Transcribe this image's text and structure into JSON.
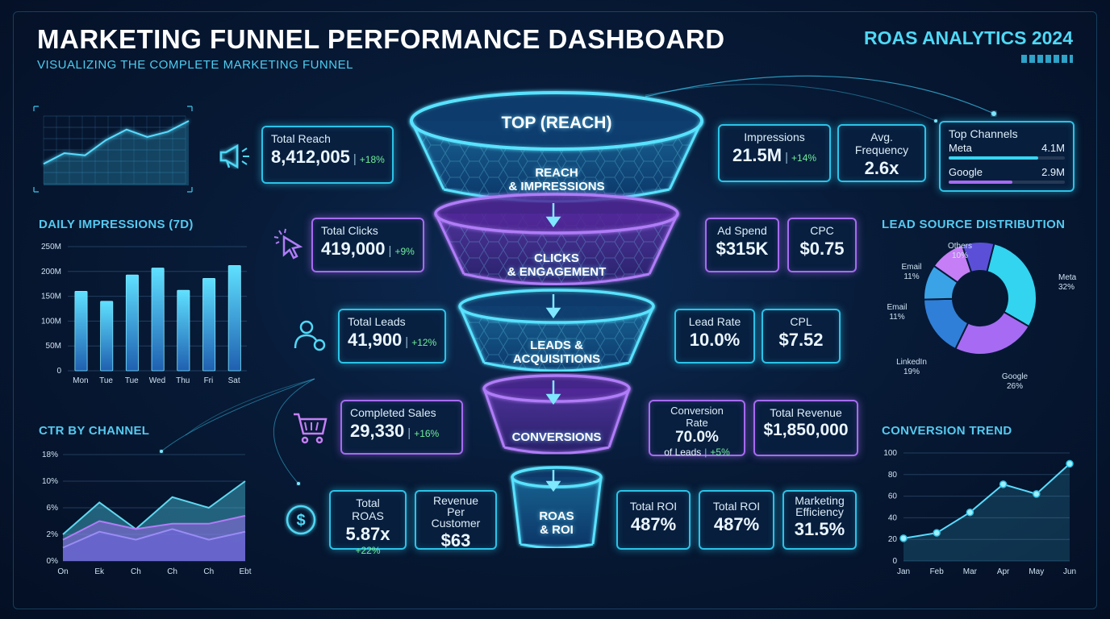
{
  "header": {
    "title": "MARKETING FUNNEL PERFORMANCE DASHBOARD",
    "subtitle": "VISUALIZING THE COMPLETE MARKETING FUNNEL",
    "brand": "ROAS ANALYTICS 2024"
  },
  "funnel": {
    "top_label": "TOP (REACH)",
    "stages": [
      {
        "label_1": "REACH",
        "label_2": "& IMPRESSIONS"
      },
      {
        "label_1": "CLICKS",
        "label_2": "& ENGAGEMENT"
      },
      {
        "label_1": "LEADS &",
        "label_2": "ACQUISITIONS"
      },
      {
        "label_1": "CONVERSIONS",
        "label_2": ""
      },
      {
        "label_1": "ROAS",
        "label_2": "& ROI"
      }
    ]
  },
  "metrics": {
    "total_reach": {
      "label": "Total Reach",
      "value": "8,412,005",
      "delta": "+18%"
    },
    "impressions": {
      "label": "Impressions",
      "value": "21.5M",
      "delta": "+14%"
    },
    "avg_frequency": {
      "label": "Avg. Frequency",
      "value": "2.6x"
    },
    "total_clicks": {
      "label": "Total Clicks",
      "value": "419,000",
      "delta": "+9%"
    },
    "ad_spend": {
      "label": "Ad Spend",
      "value": "$315K"
    },
    "cpc": {
      "label": "CPC",
      "value": "$0.75"
    },
    "total_leads": {
      "label": "Total Leads",
      "value": "41,900",
      "delta": "+12%"
    },
    "lead_rate": {
      "label": "Lead Rate",
      "value": "10.0%"
    },
    "cpl": {
      "label": "CPL",
      "value": "$7.52"
    },
    "completed_sales": {
      "label": "Completed Sales",
      "value": "29,330",
      "delta": "+16%"
    },
    "conversion_rate": {
      "label": "Conversion Rate",
      "value": "70.0%",
      "sub": "of Leads",
      "delta": "+5%"
    },
    "total_revenue": {
      "label": "Total Revenue",
      "value": "$1,850,000"
    },
    "total_roas": {
      "label": "Total ROAS",
      "value": "5.87x",
      "delta": "+22%"
    },
    "revenue_per_customer": {
      "label_1": "Revenue",
      "label_2": "Per Customer",
      "value": "$63"
    },
    "total_roi_1": {
      "label": "Total ROI",
      "value": "487%"
    },
    "total_roi_2": {
      "label": "Total ROI",
      "value": "487%"
    },
    "marketing_efficiency": {
      "label_1": "Marketing",
      "label_2": "Efficiency",
      "value": "31.5%"
    }
  },
  "top_channels": {
    "title": "Top Channels",
    "items": [
      {
        "name": "Meta",
        "value": "4.1M",
        "fill": 0.77,
        "color": "#35d6f2"
      },
      {
        "name": "Google",
        "value": "2.9M",
        "fill": 0.55,
        "color": "#a66bf2"
      }
    ]
  },
  "colors": {
    "cyan": "#2bc3e8",
    "purple": "#a66bf2",
    "green": "#6ff09a",
    "title_blue": "#56c9ef"
  },
  "icons": [
    "megaphone-icon",
    "cursor-click-icon",
    "user-icon",
    "cart-icon",
    "dollar-icon"
  ],
  "chart_data": [
    {
      "type": "bar",
      "title": "DAILY IMPRESSIONS (7D)",
      "categories": [
        "Mon",
        "Tue",
        "Tue",
        "Wed",
        "Thu",
        "Fri",
        "Sat"
      ],
      "values": [
        160,
        140,
        193,
        207,
        162,
        186,
        212
      ],
      "yticks": [
        "0",
        "50M",
        "100M",
        "150M",
        "200M",
        "250M"
      ],
      "ylim": [
        0,
        250
      ]
    },
    {
      "type": "area",
      "title": "CTR BY CHANNEL",
      "categories": [
        "On",
        "Ek",
        "Ch",
        "Ch",
        "Ch",
        "Ebt"
      ],
      "yticks": [
        "0%",
        "2%",
        "6%",
        "10%",
        "18%"
      ],
      "ylim": [
        0,
        20
      ],
      "series": [
        {
          "values": [
            5,
            11,
            6,
            12,
            10,
            15
          ]
        },
        {
          "values": [
            4,
            7.5,
            6,
            7,
            7,
            8.5
          ]
        },
        {
          "values": [
            2.5,
            5.5,
            4,
            6,
            4,
            5.5
          ]
        }
      ]
    },
    {
      "type": "pie",
      "title": "LEAD SOURCE DISTRIBUTION",
      "slices": [
        {
          "name": "Meta",
          "pct": "32%",
          "value": 32,
          "color": "#33d4f0"
        },
        {
          "name": "Google",
          "pct": "26%",
          "value": 26,
          "color": "#a66bf2"
        },
        {
          "name": "LinkedIn",
          "pct": "19%",
          "value": 19,
          "color": "#2f7fd8"
        },
        {
          "name": "Email",
          "pct": "11%",
          "value": 11,
          "color": "#3aa3e8"
        },
        {
          "name": "Email",
          "pct": "11%",
          "value": 11,
          "color": "#c57ef5"
        },
        {
          "name": "Others",
          "pct": "10%",
          "value": 10,
          "color": "#5b4fd8"
        }
      ]
    },
    {
      "type": "line",
      "title": "CONVERSION TREND",
      "categories": [
        "Jan",
        "Feb",
        "Mar",
        "Apr",
        "May",
        "Jun"
      ],
      "values": [
        21,
        26,
        45,
        71,
        62,
        90
      ],
      "yticks": [
        "0",
        "20",
        "40",
        "60",
        "80",
        "100"
      ],
      "ylim": [
        0,
        100
      ]
    },
    {
      "type": "line",
      "title": "",
      "values": [
        20,
        30,
        28,
        42,
        52,
        45,
        50,
        60
      ]
    }
  ]
}
